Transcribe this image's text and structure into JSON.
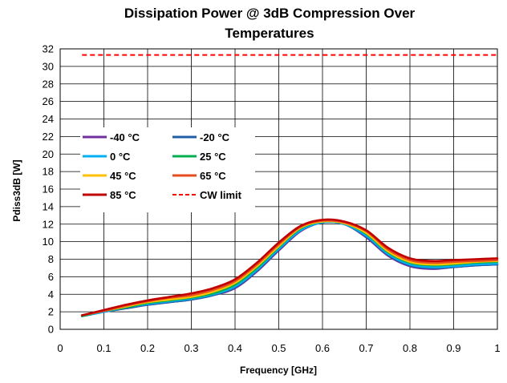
{
  "chart_data": {
    "type": "line",
    "title_line1": "Dissipation Power @ 3dB Compression Over",
    "title_line2": "Temperatures",
    "xlabel": "Frequency [GHz]",
    "ylabel": "Pdiss3dB [W]",
    "xlim": [
      0,
      1
    ],
    "ylim": [
      0,
      32
    ],
    "x_ticks": [
      0,
      0.1,
      0.2,
      0.3,
      0.4,
      0.5,
      0.6,
      0.7,
      0.8,
      0.9,
      1
    ],
    "x_tick_labels": [
      "0",
      "0.1",
      "0.2",
      "0.3",
      "0.4",
      "0.5",
      "0.6",
      "0.7",
      "0.8",
      "0.9",
      "1"
    ],
    "y_ticks": [
      0,
      2,
      4,
      6,
      8,
      10,
      12,
      14,
      16,
      18,
      20,
      22,
      24,
      26,
      28,
      30,
      32
    ],
    "y_tick_labels": [
      "0",
      "2",
      "4",
      "6",
      "8",
      "10",
      "12",
      "14",
      "16",
      "18",
      "20",
      "22",
      "24",
      "26",
      "28",
      "30",
      "32"
    ],
    "grid": true,
    "legend_position": "center-left",
    "x": [
      0.05,
      0.1,
      0.15,
      0.2,
      0.25,
      0.3,
      0.35,
      0.4,
      0.45,
      0.5,
      0.55,
      0.6,
      0.65,
      0.7,
      0.75,
      0.8,
      0.85,
      0.9,
      0.95,
      1.0
    ],
    "series": [
      {
        "name": "-40 °C",
        "color": "#7030A0",
        "dash": false,
        "values": [
          1.5,
          2.0,
          2.4,
          2.8,
          3.1,
          3.4,
          3.9,
          4.7,
          6.6,
          9.0,
          11.2,
          12.2,
          12.0,
          10.5,
          8.4,
          7.2,
          6.9,
          7.1,
          7.3,
          7.4
        ]
      },
      {
        "name": "-20 °C",
        "color": "#1F5FA8",
        "dash": false,
        "values": [
          1.5,
          2.0,
          2.4,
          2.8,
          3.1,
          3.4,
          3.9,
          4.8,
          6.7,
          9.1,
          11.3,
          12.2,
          12.0,
          10.6,
          8.5,
          7.3,
          7.0,
          7.1,
          7.3,
          7.4
        ]
      },
      {
        "name": "0 °C",
        "color": "#00B0F0",
        "dash": false,
        "values": [
          1.5,
          2.0,
          2.5,
          2.9,
          3.2,
          3.5,
          4.0,
          4.9,
          6.8,
          9.2,
          11.3,
          12.2,
          12.0,
          10.7,
          8.6,
          7.4,
          7.1,
          7.2,
          7.4,
          7.5
        ]
      },
      {
        "name": "25 °C",
        "color": "#00B050",
        "dash": false,
        "values": [
          1.5,
          2.1,
          2.5,
          3.0,
          3.3,
          3.6,
          4.1,
          5.1,
          7.0,
          9.4,
          11.5,
          12.3,
          12.1,
          10.9,
          8.8,
          7.6,
          7.3,
          7.4,
          7.6,
          7.7
        ]
      },
      {
        "name": "45 °C",
        "color": "#FFC000",
        "dash": false,
        "values": [
          1.6,
          2.1,
          2.6,
          3.1,
          3.4,
          3.7,
          4.3,
          5.3,
          7.2,
          9.5,
          11.6,
          12.3,
          12.1,
          11.0,
          8.9,
          7.7,
          7.4,
          7.5,
          7.7,
          7.8
        ]
      },
      {
        "name": "65 °C",
        "color": "#E84C1E",
        "dash": false,
        "values": [
          1.6,
          2.1,
          2.7,
          3.2,
          3.6,
          3.9,
          4.5,
          5.5,
          7.4,
          9.7,
          11.7,
          12.4,
          12.2,
          11.2,
          9.1,
          7.9,
          7.6,
          7.7,
          7.8,
          7.9
        ]
      },
      {
        "name": "85 °C",
        "color": "#C00000",
        "dash": false,
        "values": [
          1.6,
          2.2,
          2.8,
          3.3,
          3.7,
          4.1,
          4.7,
          5.7,
          7.6,
          9.9,
          11.8,
          12.5,
          12.3,
          11.3,
          9.3,
          8.1,
          7.8,
          7.9,
          8.0,
          8.1
        ]
      },
      {
        "name": "CW limit",
        "color": "#FF0000",
        "dash": true,
        "values": [
          31.3,
          31.3,
          31.3,
          31.3,
          31.3,
          31.3,
          31.3,
          31.3,
          31.3,
          31.3,
          31.3,
          31.3,
          31.3,
          31.3,
          31.3,
          31.3,
          31.3,
          31.3,
          31.3,
          31.3
        ]
      }
    ]
  }
}
